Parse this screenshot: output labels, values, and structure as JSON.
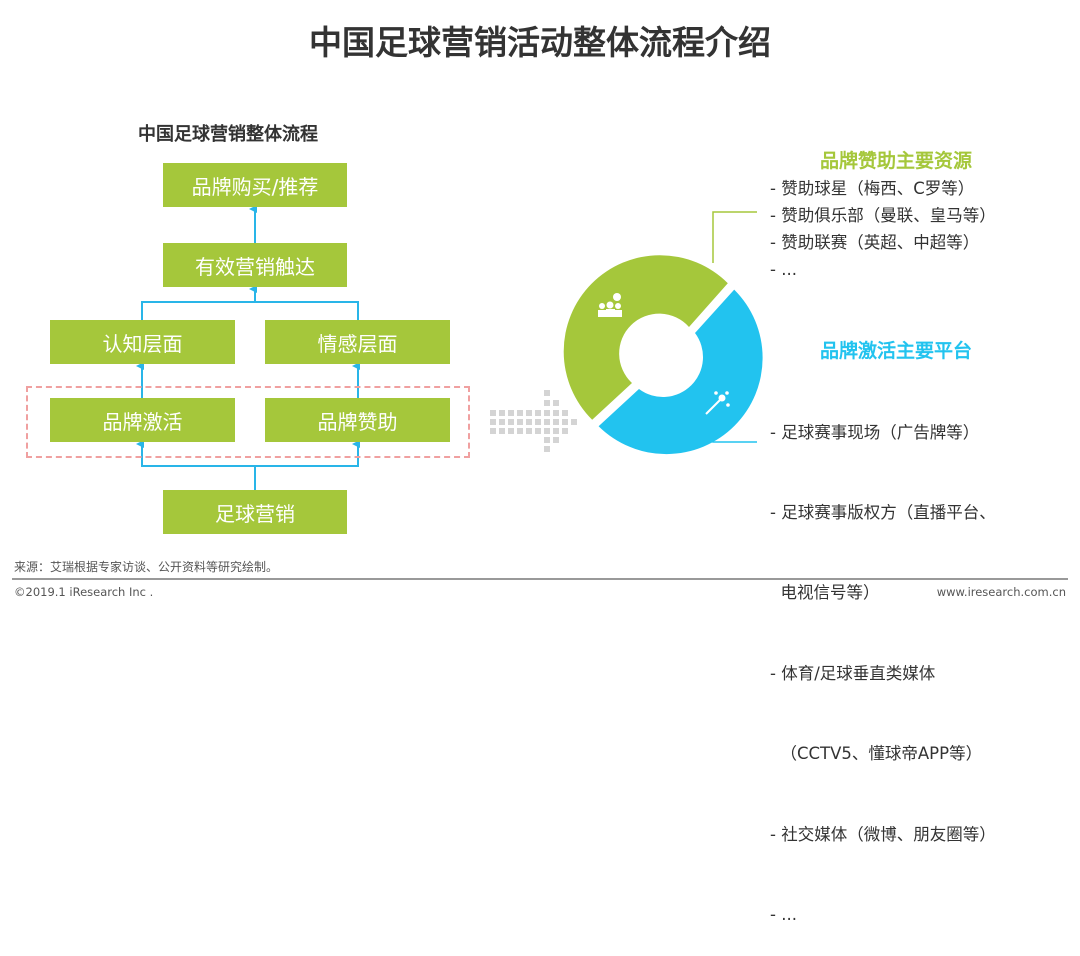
{
  "title": "中国足球营销活动整体流程介绍",
  "flow": {
    "subtitle": "中国足球营销整体流程",
    "boxes": {
      "purchase": "品牌购买/推荐",
      "reach": "有效营销触达",
      "cognition": "认知层面",
      "emotion": "情感层面",
      "activation": "品牌激活",
      "sponsorship": "品牌赞助",
      "football_marketing": "足球营销"
    }
  },
  "donut": {
    "colors": {
      "green": "#a5c73b",
      "blue": "#22c3ef"
    },
    "segments": [
      {
        "icon": "people-money-icon",
        "color": "#a5c73b"
      },
      {
        "icon": "magic-wand-icon",
        "color": "#22c3ef"
      }
    ]
  },
  "sponsorship_resources": {
    "heading": "品牌赞助主要资源",
    "items": [
      "- 赞助球星（梅西、C罗等）",
      "- 赞助俱乐部（曼联、皇马等）",
      "- 赞助联赛（英超、中超等）",
      "- ..."
    ]
  },
  "activation_platforms": {
    "heading": "品牌激活主要平台",
    "items": [
      "- 足球赛事现场（广告牌等）",
      "- 足球赛事版权方（直播平台、",
      "  电视信号等）",
      "- 体育/足球垂直类媒体",
      "  （CCTV5、懂球帝APP等）",
      "- 社交媒体（微博、朋友圈等）",
      "- ..."
    ]
  },
  "footer": {
    "source": "来源：艾瑞根据专家访谈、公开资料等研究绘制。",
    "copyright": "©2019.1 iResearch Inc .",
    "url": "www.iresearch.com.cn"
  }
}
